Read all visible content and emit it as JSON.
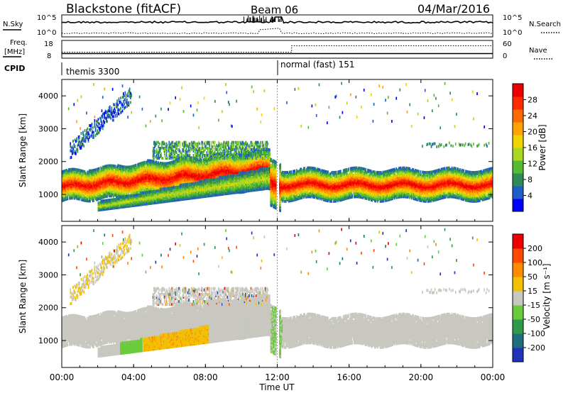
{
  "header": {
    "station": "Blackstone (fitACF)",
    "beam": "Beam 06",
    "date": "04/Mar/2016"
  },
  "noise_panel": {
    "left_label": "N.Sky",
    "right_label": "N.Search",
    "ticks_left": [
      "10^5",
      "10^0"
    ],
    "ticks_right": [
      "10^5",
      "10^0"
    ]
  },
  "freq_panel": {
    "left_label_line1": "Freq.",
    "left_label_line2": "[MHz]",
    "right_label": "Nave",
    "ticks_left": [
      "18",
      "8"
    ],
    "ticks_right": [
      "60",
      "0"
    ],
    "freq_mhz": 10.6,
    "nave_before_change": 20,
    "nave_after_change": 42
  },
  "cpid_panel": {
    "label": "CPID",
    "segments": [
      {
        "name": "themis 3300",
        "start_hour": 0
      },
      {
        "name": "normal (fast) 151",
        "start_hour": 12
      }
    ]
  },
  "x_axis": {
    "label": "Time UT",
    "ticks": [
      "00:00",
      "04:00",
      "08:00",
      "12:00",
      "16:00",
      "20:00",
      "00:00"
    ],
    "tick_hours": [
      0,
      4,
      8,
      12,
      16,
      20,
      24
    ],
    "range_hours": [
      0,
      24
    ]
  },
  "power_panel": {
    "ylabel": "Slant Range [km]",
    "yticks": [
      "1000",
      "2000",
      "3000",
      "4000"
    ],
    "ytick_values": [
      1000,
      2000,
      3000,
      4000
    ],
    "ylim": [
      180,
      4500
    ],
    "colorbar_label": "Power [dB]",
    "colorbar_ticks": [
      "4",
      "8",
      "12",
      "16",
      "20",
      "24",
      "28"
    ],
    "colorbar_colors": [
      "#0000ff",
      "#1f5ec8",
      "#2f8c5a",
      "#55bb33",
      "#a8d820",
      "#f2d300",
      "#ffa300",
      "#ff6a00",
      "#ff2a00",
      "#ee0000"
    ]
  },
  "velocity_panel": {
    "ylabel": "Slant Range [km]",
    "yticks": [
      "1000",
      "2000",
      "3000",
      "4000"
    ],
    "ytick_values": [
      1000,
      2000,
      3000,
      4000
    ],
    "ylim": [
      180,
      4500
    ],
    "colorbar_label": "Velocity [m s⁻¹]",
    "colorbar_ticks": [
      "200",
      "100",
      "50",
      "15",
      "-15",
      "-50",
      "-100",
      "-200"
    ],
    "colorbar_colors": [
      "#2233bb",
      "#1f6e7e",
      "#2f9a4a",
      "#6acb3a",
      "#c8c8c0",
      "#f2c000",
      "#ff8a00",
      "#ff4a00",
      "#ee0000"
    ]
  },
  "chart_data": {
    "type": "heatmap",
    "title": "Blackstone (fitACF) Beam 06 04/Mar/2016",
    "xlabel": "Time UT",
    "ylabel": "Slant Range [km]",
    "x_range_hours": [
      0,
      24
    ],
    "y_range_km": [
      180,
      4500
    ],
    "panels": [
      {
        "name": "Power [dB]",
        "range": [
          0,
          30
        ],
        "features": [
          {
            "t_start": 0.0,
            "t_end": 11.5,
            "range_start_km": 1000,
            "range_end_km": 2000,
            "power_db_peak": 28,
            "note": "main band rising"
          },
          {
            "t_start": 2.0,
            "t_end": 11.5,
            "range_start_km": 550,
            "range_end_km": 1400,
            "power_db_peak": 16,
            "note": "lower diagonal band"
          },
          {
            "t_start": 12.1,
            "t_end": 24.0,
            "range_start_km": 1000,
            "range_end_km": 1800,
            "power_db_peak": 28,
            "note": "steady band"
          },
          {
            "t_start": 0.5,
            "t_end": 3.8,
            "range_start_km": 2300,
            "range_end_km": 4300,
            "power_db_peak": 8,
            "note": "high-range streaks"
          }
        ]
      },
      {
        "name": "Velocity [m s^-1]",
        "range": [
          -200,
          200
        ],
        "features": [
          {
            "t_start": 0.0,
            "t_end": 11.5,
            "range_start_km": 1100,
            "range_end_km": 2000,
            "velocity_ms": 0,
            "note": "ground scatter"
          },
          {
            "t_start": 4.5,
            "t_end": 8.0,
            "range_start_km": 700,
            "range_end_km": 1300,
            "velocity_ms": -50,
            "note": "negative velocity patch"
          },
          {
            "t_start": 12.1,
            "t_end": 24.0,
            "range_start_km": 1000,
            "range_end_km": 1800,
            "velocity_ms": 0,
            "note": "ground scatter"
          },
          {
            "t_start": 11.8,
            "t_end": 12.3,
            "range_start_km": 1000,
            "range_end_km": 2200,
            "velocity_ms": 50,
            "note": "positive velocity"
          }
        ]
      }
    ]
  }
}
